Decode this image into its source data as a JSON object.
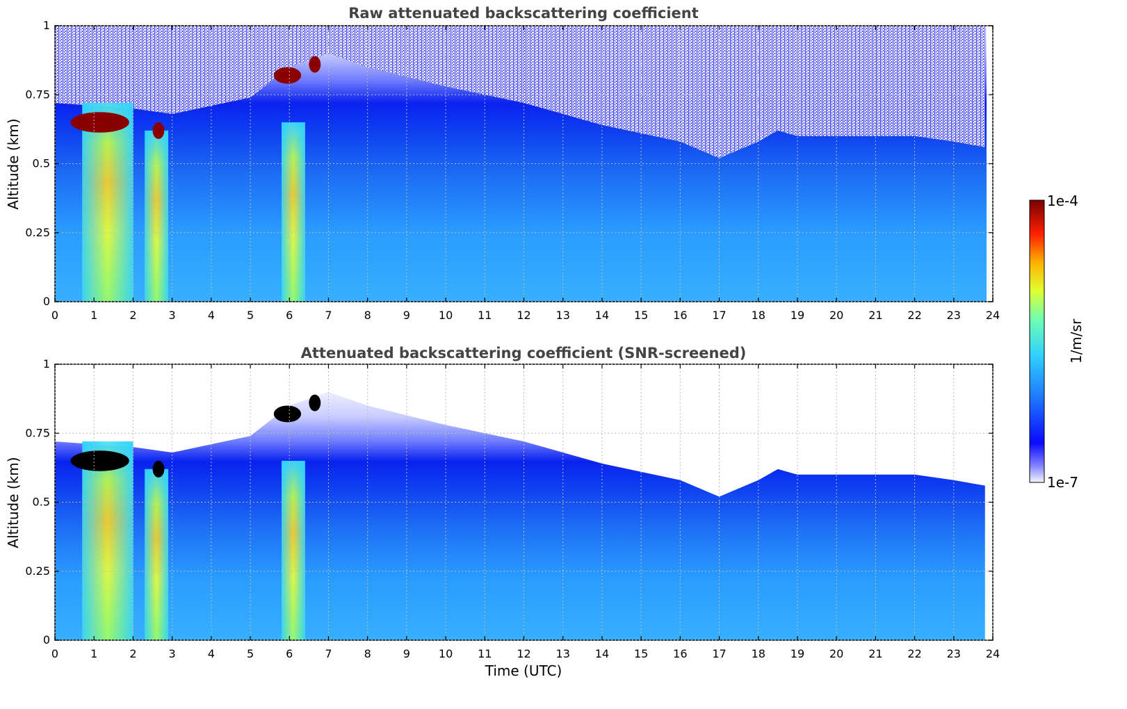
{
  "chart_data": [
    {
      "type": "heatmap",
      "title": "Raw attenuated backscattering coefficient",
      "xlabel": "",
      "ylabel": "Altitude (km)",
      "xlim": [
        0,
        24
      ],
      "ylim": [
        0,
        1
      ],
      "x_ticks": [
        "0",
        "1",
        "2",
        "3",
        "4",
        "5",
        "6",
        "7",
        "8",
        "9",
        "10",
        "11",
        "12",
        "13",
        "14",
        "15",
        "16",
        "17",
        "18",
        "19",
        "20",
        "21",
        "22",
        "23",
        "24"
      ],
      "y_ticks": [
        "0",
        "0.25",
        "0.5",
        "0.75",
        "1"
      ],
      "grid": true,
      "features": [
        {
          "kind": "aerosol-column",
          "t_start": 0.7,
          "t_end": 2.0,
          "level": 0.72
        },
        {
          "kind": "aerosol-column",
          "t_start": 2.3,
          "t_end": 2.9,
          "level": 0.62
        },
        {
          "kind": "aerosol-column",
          "t_start": 5.8,
          "t_end": 6.4,
          "level": 0.65
        },
        {
          "kind": "cloud",
          "t_start": 0.4,
          "t_end": 1.9,
          "alt": 0.65,
          "level": 1.0
        },
        {
          "kind": "cloud",
          "t_start": 2.5,
          "t_end": 2.8,
          "alt": 0.62,
          "level": 0.95
        },
        {
          "kind": "cloud",
          "t_start": 5.6,
          "t_end": 6.3,
          "alt": 0.82,
          "level": 1.0
        },
        {
          "kind": "cloud",
          "t_start": 6.5,
          "t_end": 6.8,
          "alt": 0.86,
          "level": 0.95
        }
      ],
      "layer_top_km": [
        [
          0,
          0.72
        ],
        [
          2,
          0.7
        ],
        [
          3,
          0.68
        ],
        [
          5,
          0.74
        ],
        [
          6,
          0.85
        ],
        [
          7,
          0.9
        ],
        [
          8,
          0.85
        ],
        [
          10,
          0.78
        ],
        [
          12,
          0.72
        ],
        [
          14,
          0.64
        ],
        [
          16,
          0.58
        ],
        [
          17,
          0.52
        ],
        [
          18,
          0.58
        ],
        [
          18.5,
          0.62
        ],
        [
          19,
          0.6
        ],
        [
          21,
          0.6
        ],
        [
          22,
          0.6
        ],
        [
          23,
          0.58
        ],
        [
          23.8,
          0.56
        ]
      ]
    },
    {
      "type": "heatmap",
      "title": "Attenuated backscattering coefficient (SNR-screened)",
      "xlabel": "Time (UTC)",
      "ylabel": "Altitude (km)",
      "xlim": [
        0,
        24
      ],
      "ylim": [
        0,
        1
      ],
      "x_ticks": [
        "0",
        "1",
        "2",
        "3",
        "4",
        "5",
        "6",
        "7",
        "8",
        "9",
        "10",
        "11",
        "12",
        "13",
        "14",
        "15",
        "16",
        "17",
        "18",
        "19",
        "20",
        "21",
        "22",
        "23",
        "24"
      ],
      "y_ticks": [
        "0",
        "0.25",
        "0.5",
        "0.75",
        "1"
      ],
      "grid": true,
      "saturated_color": "#000000"
    }
  ],
  "colorbar": {
    "label": "1/m/sr",
    "max_label": "1e-4",
    "min_label": "1e-7",
    "colors": [
      "#eeeeff",
      "#1010ff",
      "#1a8cff",
      "#3fd0ff",
      "#80ffb0",
      "#e0ff30",
      "#ffc000",
      "#ff3000",
      "#aa0000",
      "#7a0000"
    ]
  }
}
